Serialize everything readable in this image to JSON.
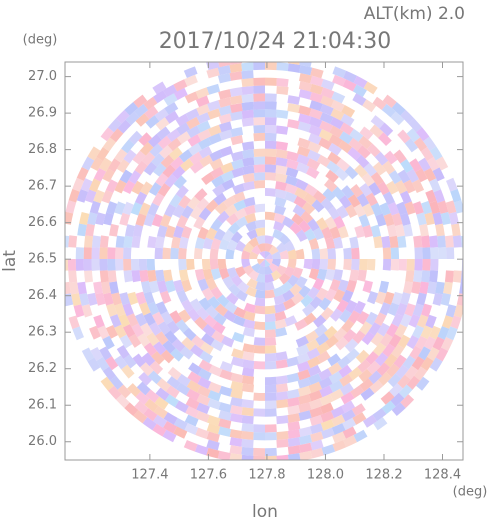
{
  "chart_data": {
    "type": "ppi",
    "title": "2017/10/24 21:04:30",
    "altitude_label": "ALT(km) 2.0",
    "x_label": "lon",
    "y_label": "lat",
    "x_unit": "(deg)",
    "y_unit": "(deg)",
    "xlim": [
      127.11,
      128.47
    ],
    "ylim": [
      25.95,
      27.04
    ],
    "xticks": [
      {
        "value": 127.4,
        "label": "127.4"
      },
      {
        "value": 127.6,
        "label": "127.6"
      },
      {
        "value": 127.8,
        "label": "127.8"
      },
      {
        "value": 128.0,
        "label": "128.0"
      },
      {
        "value": 128.2,
        "label": "128.2"
      },
      {
        "value": 128.4,
        "label": "128.4"
      }
    ],
    "yticks": [
      {
        "value": 26.0,
        "label": "26.0"
      },
      26.1,
      26.2,
      26.3,
      26.4,
      26.5,
      26.6,
      26.7,
      26.8,
      26.9,
      {
        "value": 27.0,
        "label": "27.0"
      }
    ]
  }
}
